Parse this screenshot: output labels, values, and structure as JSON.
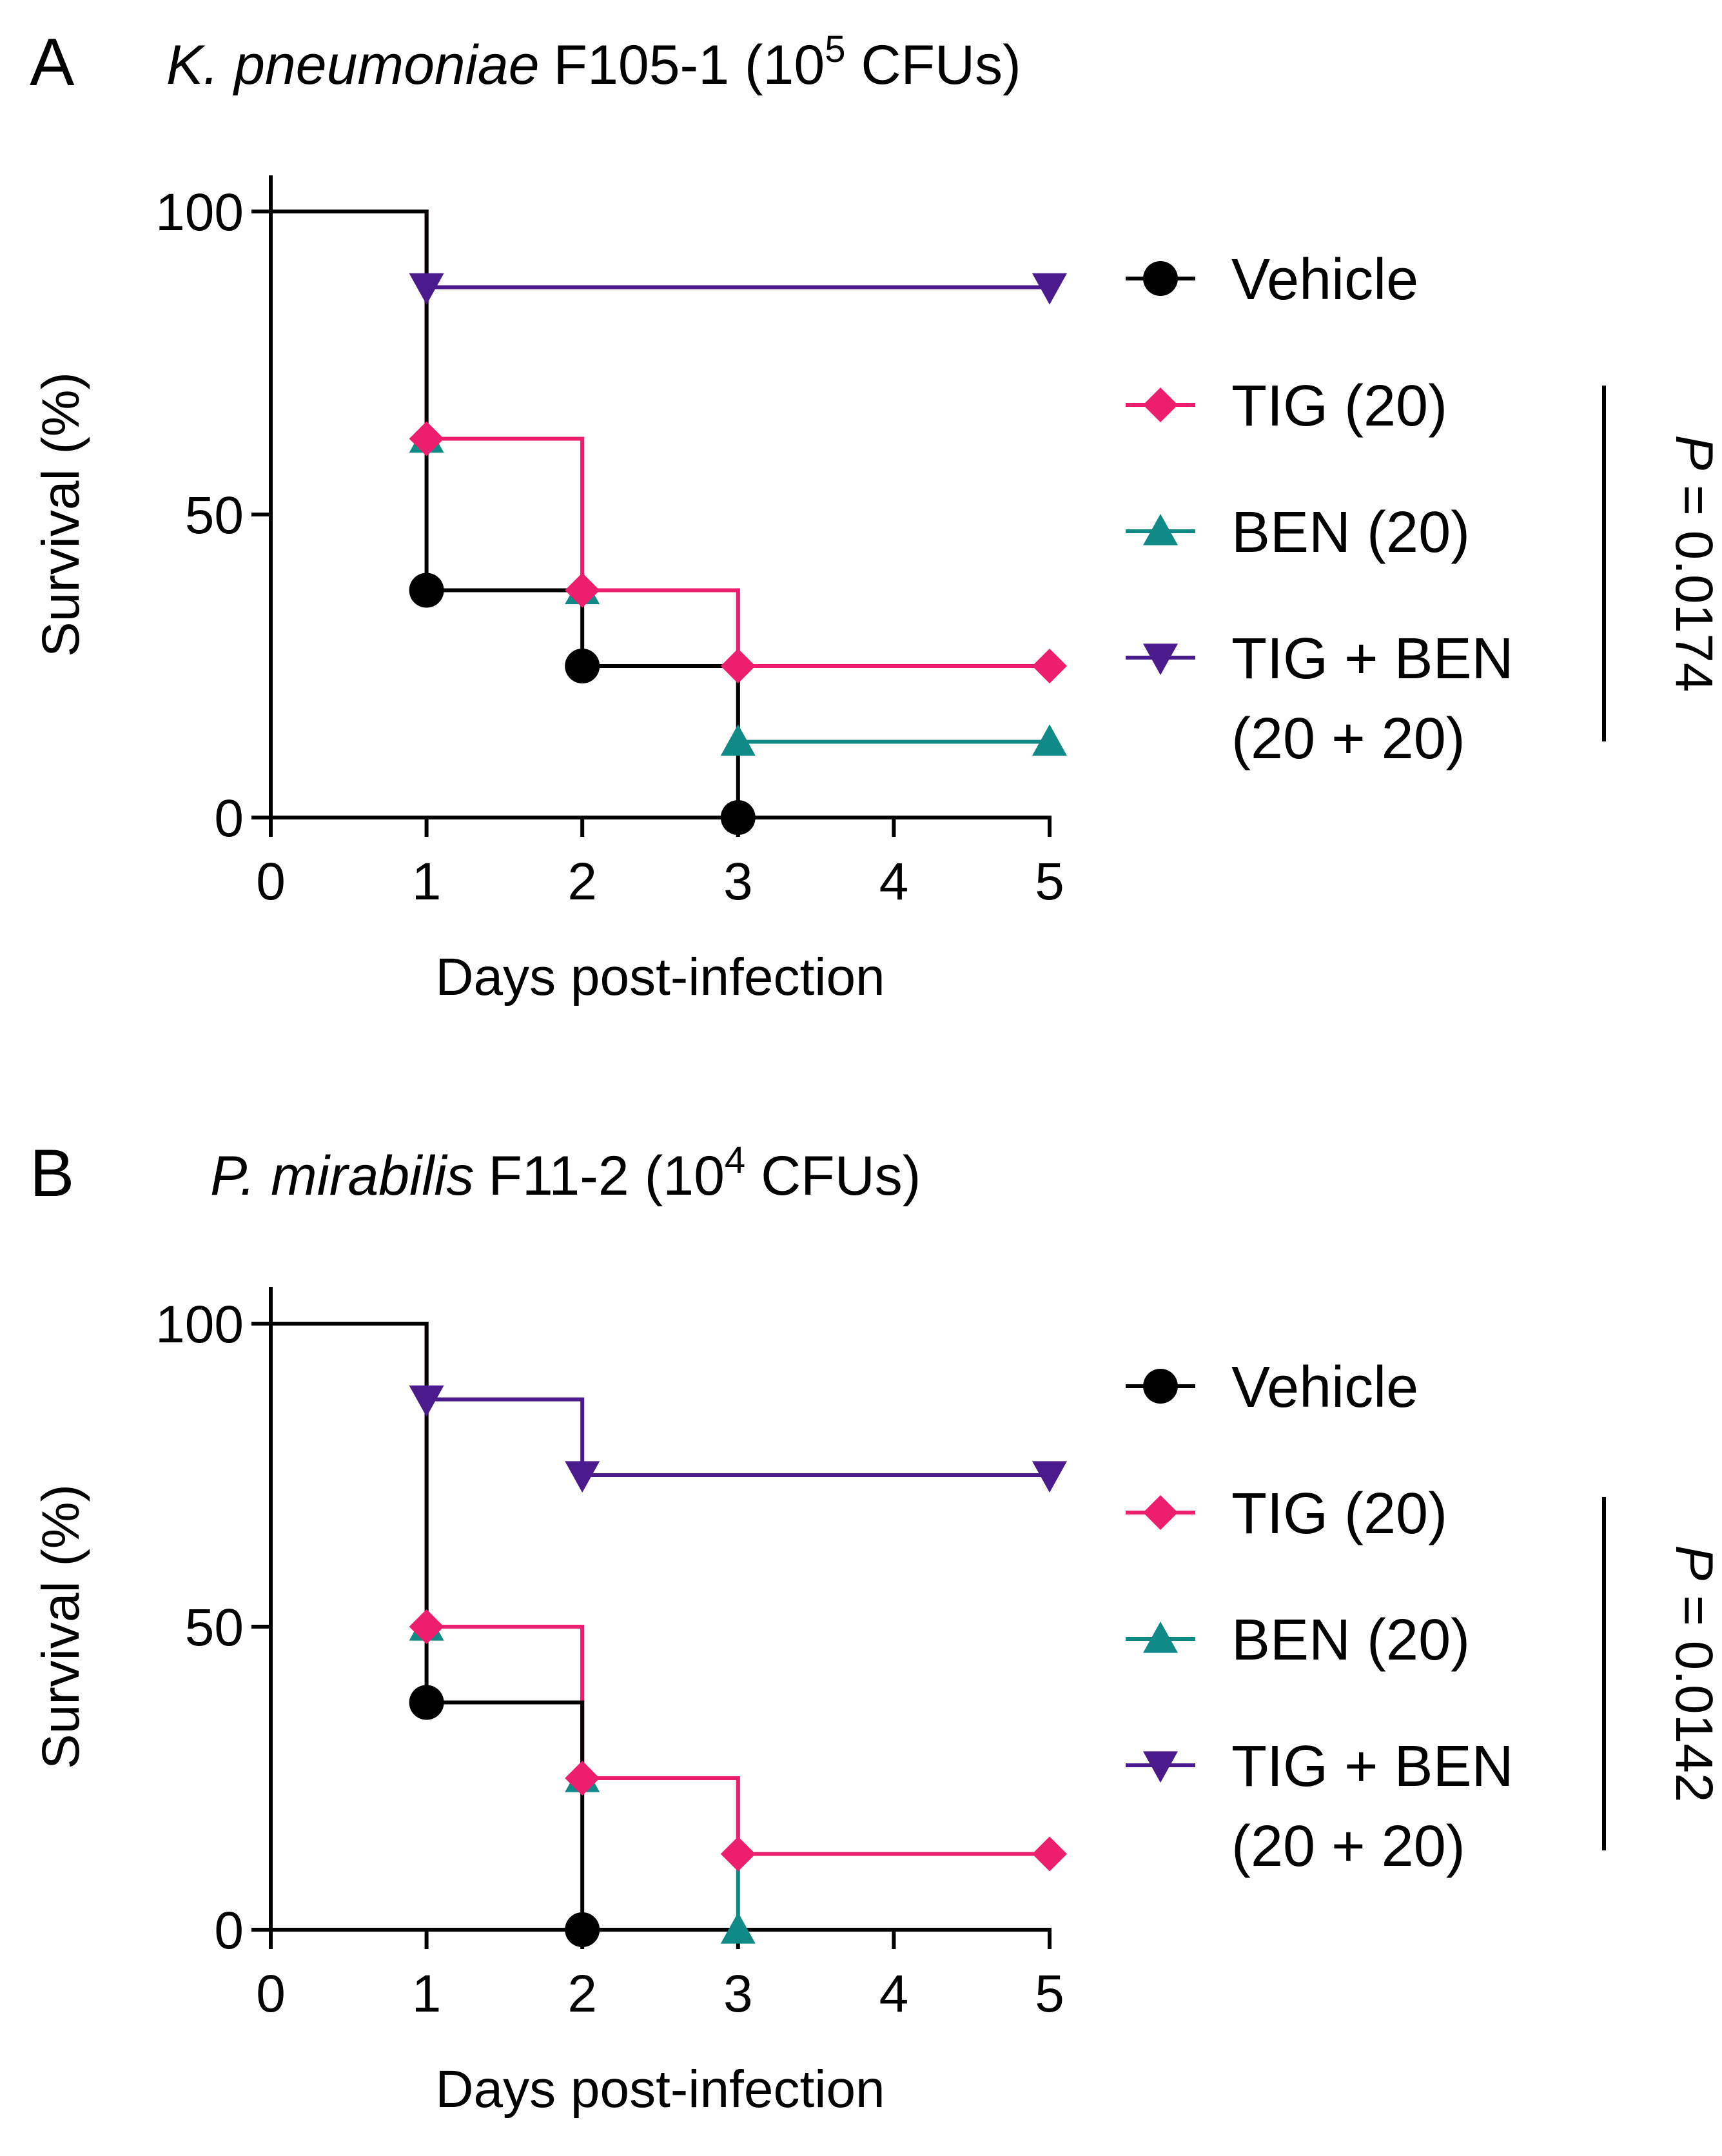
{
  "chart_data": [
    {
      "panel": "A",
      "type": "line",
      "step": true,
      "title": {
        "italic": "K. pneumoniae",
        "rest": "F105-1 (10",
        "sup": "5",
        "end": " CFUs)"
      },
      "xlabel": "Days post-infection",
      "ylabel": "Survival (%)",
      "xlim": [
        0,
        5
      ],
      "ylim": [
        0,
        100
      ],
      "xticks": [
        "0",
        "1",
        "2",
        "3",
        "4",
        "5"
      ],
      "yticks": [
        "0",
        "50",
        "100"
      ],
      "series": [
        {
          "name": "Vehicle",
          "color": "#000000",
          "marker": "circle",
          "steps": [
            [
              0,
              100
            ],
            [
              1,
              37.5
            ],
            [
              2,
              25
            ],
            [
              3,
              0
            ]
          ],
          "markers": [
            [
              1,
              37.5
            ],
            [
              2,
              25
            ],
            [
              3,
              0
            ]
          ]
        },
        {
          "name": "TIG (20)",
          "color": "#ee1e6e",
          "marker": "diamond",
          "steps": [
            [
              0,
              100
            ],
            [
              1,
              62.5
            ],
            [
              2,
              37.5
            ],
            [
              3,
              25
            ],
            [
              5,
              25
            ]
          ],
          "markers": [
            [
              1,
              62.5
            ],
            [
              2,
              37.5
            ],
            [
              3,
              25
            ],
            [
              5,
              25
            ]
          ]
        },
        {
          "name": "BEN (20)",
          "color": "#0f8a87",
          "marker": "triangle-up",
          "steps": [
            [
              0,
              100
            ],
            [
              1,
              62.5
            ],
            [
              2,
              37.5
            ],
            [
              3,
              12.5
            ],
            [
              5,
              12.5
            ]
          ],
          "markers": [
            [
              1,
              62.5
            ],
            [
              2,
              37.5
            ],
            [
              3,
              12.5
            ],
            [
              5,
              12.5
            ]
          ]
        },
        {
          "name": "TIG + BEN",
          "name_line2": "(20 + 20)",
          "color": "#4b1a8c",
          "marker": "triangle-down",
          "steps": [
            [
              0,
              100
            ],
            [
              1,
              87.5
            ],
            [
              5,
              87.5
            ]
          ],
          "markers": [
            [
              1,
              87.5
            ],
            [
              5,
              87.5
            ]
          ]
        }
      ],
      "pvalue": {
        "label": "P",
        "text": " = 0.0174"
      }
    },
    {
      "panel": "B",
      "type": "line",
      "step": true,
      "title": {
        "italic": "P. mirabilis",
        "rest": "F11-2 (10",
        "sup": "4",
        "end": " CFUs)"
      },
      "xlabel": "Days post-infection",
      "ylabel": "Survival (%)",
      "xlim": [
        0,
        5
      ],
      "ylim": [
        0,
        100
      ],
      "xticks": [
        "0",
        "1",
        "2",
        "3",
        "4",
        "5"
      ],
      "yticks": [
        "0",
        "50",
        "100"
      ],
      "series": [
        {
          "name": "Vehicle",
          "color": "#000000",
          "marker": "circle",
          "steps": [
            [
              0,
              100
            ],
            [
              1,
              37.5
            ],
            [
              2,
              0
            ]
          ],
          "markers": [
            [
              1,
              37.5
            ],
            [
              2,
              0
            ]
          ]
        },
        {
          "name": "TIG (20)",
          "color": "#ee1e6e",
          "marker": "diamond",
          "steps": [
            [
              0,
              100
            ],
            [
              1,
              50
            ],
            [
              2,
              25
            ],
            [
              3,
              12.5
            ],
            [
              5,
              12.5
            ]
          ],
          "markers": [
            [
              1,
              50
            ],
            [
              2,
              25
            ],
            [
              3,
              12.5
            ],
            [
              5,
              12.5
            ]
          ]
        },
        {
          "name": "BEN (20)",
          "color": "#0f8a87",
          "marker": "triangle-up",
          "steps": [
            [
              0,
              100
            ],
            [
              1,
              50
            ],
            [
              2,
              25
            ],
            [
              3,
              0
            ]
          ],
          "markers": [
            [
              1,
              50
            ],
            [
              2,
              25
            ],
            [
              3,
              0
            ]
          ]
        },
        {
          "name": "TIG + BEN",
          "name_line2": "(20 + 20)",
          "color": "#4b1a8c",
          "marker": "triangle-down",
          "steps": [
            [
              0,
              100
            ],
            [
              1,
              87.5
            ],
            [
              2,
              75
            ],
            [
              5,
              75
            ]
          ],
          "markers": [
            [
              1,
              87.5
            ],
            [
              2,
              75
            ],
            [
              5,
              75
            ]
          ]
        }
      ],
      "pvalue": {
        "label": "P",
        "text": " = 0.0142"
      }
    }
  ]
}
